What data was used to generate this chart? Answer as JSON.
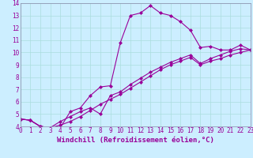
{
  "title": "",
  "xlabel": "Windchill (Refroidissement éolien,°C)",
  "bg_color": "#cceeff",
  "line_color": "#990099",
  "grid_color": "#aadddd",
  "xlim": [
    0,
    23
  ],
  "ylim": [
    4,
    14
  ],
  "xticks": [
    0,
    1,
    2,
    3,
    4,
    5,
    6,
    7,
    8,
    9,
    10,
    11,
    12,
    13,
    14,
    15,
    16,
    17,
    18,
    19,
    20,
    21,
    22,
    23
  ],
  "yticks": [
    4,
    5,
    6,
    7,
    8,
    9,
    10,
    11,
    12,
    13,
    14
  ],
  "line1_x": [
    0,
    1,
    2,
    3,
    4,
    5,
    6,
    7,
    8,
    9,
    10,
    11,
    12,
    13,
    14,
    15,
    16,
    17,
    18,
    19,
    20,
    21,
    22,
    23
  ],
  "line1_y": [
    4.6,
    4.5,
    4.0,
    3.9,
    3.9,
    5.2,
    5.5,
    6.5,
    7.2,
    7.3,
    10.8,
    13.0,
    13.2,
    13.8,
    13.2,
    13.0,
    12.5,
    11.8,
    10.4,
    10.5,
    10.2,
    10.2,
    10.6,
    10.2
  ],
  "line2_x": [
    0,
    1,
    2,
    3,
    4,
    5,
    6,
    7,
    8,
    9,
    10,
    11,
    12,
    13,
    14,
    15,
    16,
    17,
    18,
    19,
    20,
    21,
    22,
    23
  ],
  "line2_y": [
    4.6,
    4.5,
    4.0,
    3.9,
    4.4,
    4.8,
    5.2,
    5.5,
    5.0,
    6.5,
    6.8,
    7.4,
    7.9,
    8.4,
    8.8,
    9.2,
    9.5,
    9.8,
    9.1,
    9.5,
    9.8,
    10.1,
    10.3,
    10.2
  ],
  "line3_x": [
    0,
    1,
    2,
    3,
    4,
    5,
    6,
    7,
    8,
    9,
    10,
    11,
    12,
    13,
    14,
    15,
    16,
    17,
    18,
    19,
    20,
    21,
    22,
    23
  ],
  "line3_y": [
    4.6,
    4.5,
    4.0,
    3.9,
    4.1,
    4.4,
    4.8,
    5.3,
    5.8,
    6.2,
    6.6,
    7.1,
    7.6,
    8.1,
    8.6,
    9.0,
    9.3,
    9.6,
    9.0,
    9.3,
    9.5,
    9.8,
    10.0,
    10.2
  ],
  "marker": "D",
  "marker_size": 2.0,
  "line_width": 0.8,
  "xlabel_fontsize": 6.5,
  "tick_fontsize": 5.5
}
